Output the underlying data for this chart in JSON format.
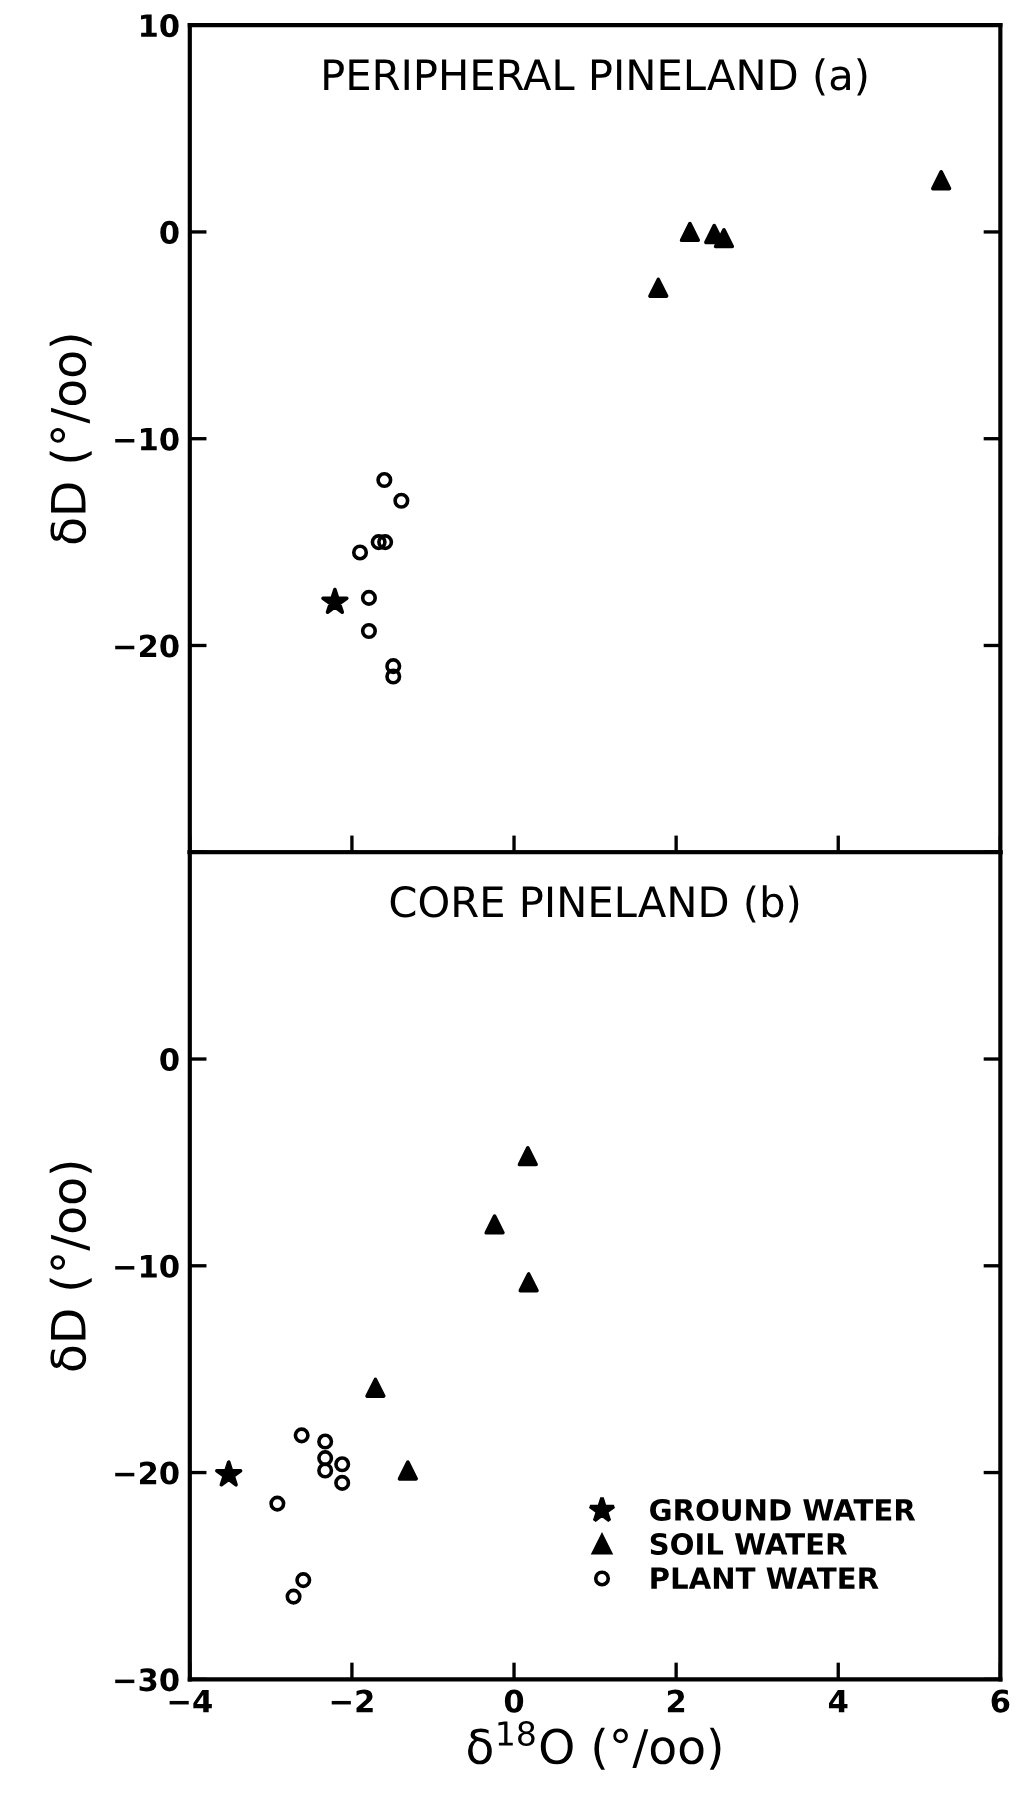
{
  "chart_data": [
    {
      "type": "scatter",
      "title": "PERIPHERAL PINELAND (a)",
      "ylabel": "δD (°/oo)",
      "xlim": [
        -4,
        6
      ],
      "xticks": [
        -4,
        -2,
        0,
        2,
        4,
        6
      ],
      "ylim": [
        -30,
        10
      ],
      "yticks": [
        {
          "value": -30,
          "label": null
        },
        -20,
        -10,
        0,
        10
      ],
      "tick_labels": "y",
      "legend": false,
      "series": [
        {
          "marker": "star",
          "color": "#000000",
          "x": [
            -2.21
          ],
          "values": [
            -17.9
          ]
        },
        {
          "marker": "triangle",
          "color": "#000000",
          "x": [
            1.78,
            2.17,
            2.47,
            2.59,
            5.27
          ],
          "values": [
            -2.7,
            0.0,
            -0.1,
            -0.3,
            2.5
          ]
        },
        {
          "marker": "circle",
          "color": "#000000",
          "x": [
            -1.6,
            -1.39,
            -1.9,
            -1.67,
            -1.59,
            -1.79,
            -1.79,
            -1.49,
            -1.49
          ],
          "values": [
            -12.0,
            -13.0,
            -15.5,
            -15.0,
            -15.0,
            -17.7,
            -19.3,
            -21.0,
            -21.5
          ]
        }
      ]
    },
    {
      "type": "scatter",
      "title": "CORE PINELAND (b)",
      "xlabel": "δ$^{18}$O (°/oo)",
      "ylabel": "δD (°/oo)",
      "xlim": [
        -4,
        6
      ],
      "xticks": [
        -4,
        -2,
        0,
        2,
        4,
        6
      ],
      "ylim": [
        -30,
        10
      ],
      "yticks": [
        -30,
        -20,
        -10,
        0,
        {
          "value": 10,
          "label": null
        }
      ],
      "legend": "bottom right",
      "series": [
        {
          "name": "GROUND WATER",
          "marker": "star",
          "color": "#000000",
          "x": [
            -3.52
          ],
          "values": [
            -20.1
          ]
        },
        {
          "name": "SOIL WATER",
          "marker": "triangle",
          "color": "#000000",
          "x": [
            0.17,
            -0.24,
            0.18,
            -1.71,
            -1.31
          ],
          "values": [
            -4.7,
            -8.0,
            -10.8,
            -15.9,
            -19.9
          ]
        },
        {
          "name": "PLANT WATER",
          "marker": "circle",
          "color": "#000000",
          "x": [
            -2.62,
            -2.33,
            -2.33,
            -2.33,
            -2.12,
            -2.12,
            -2.92,
            -2.6,
            -2.72
          ],
          "values": [
            -18.2,
            -18.5,
            -19.3,
            -19.9,
            -19.6,
            -20.5,
            -21.5,
            -25.2,
            -26.0
          ]
        }
      ]
    }
  ]
}
